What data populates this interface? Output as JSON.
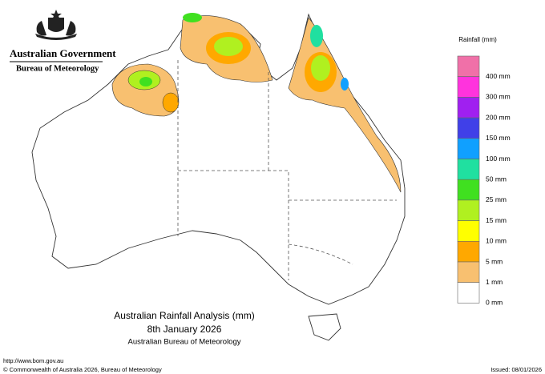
{
  "header": {
    "government": "Australian Government",
    "bureau": "Bureau of Meteorology"
  },
  "legend": {
    "title": "Rainfall (mm)",
    "items": [
      {
        "label": "400 mm",
        "color": "#f070a8"
      },
      {
        "label": "300 mm",
        "color": "#ff33dd"
      },
      {
        "label": "200 mm",
        "color": "#a020f0"
      },
      {
        "label": "150 mm",
        "color": "#4040e8"
      },
      {
        "label": "100 mm",
        "color": "#10a0ff"
      },
      {
        "label": "50 mm",
        "color": "#20e0a0"
      },
      {
        "label": "25 mm",
        "color": "#40e020"
      },
      {
        "label": "15 mm",
        "color": "#b0f020"
      },
      {
        "label": "10 mm",
        "color": "#ffff00"
      },
      {
        "label": "5 mm",
        "color": "#ffa800"
      },
      {
        "label": "1 mm",
        "color": "#f8c070"
      },
      {
        "label": "0 mm",
        "color": "#ffffff"
      }
    ]
  },
  "caption": {
    "title": "Australian Rainfall Analysis (mm)",
    "date": "8th January 2026",
    "source": "Australian Bureau of Meteorology"
  },
  "footer": {
    "url": "http://www.bom.gov.au",
    "copyright": "© Commonwealth of Australia 2026, Bureau of Meteorology",
    "issued": "Issued: 08/01/2026"
  }
}
